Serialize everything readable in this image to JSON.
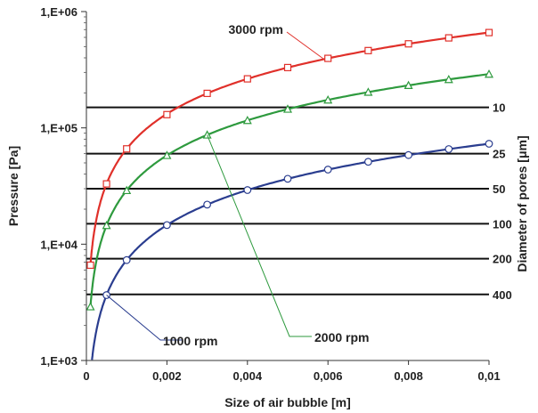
{
  "chart_data": {
    "type": "line",
    "xlabel": "Size of air bubble [m]",
    "ylabel": "Pressure [Pa]",
    "y2label": "Diameter of pores [μm]",
    "yscale": "log",
    "xlim": [
      0,
      0.01
    ],
    "ylim": [
      1000,
      1000000
    ],
    "x_ticks": [
      0,
      0.002,
      0.004,
      0.006,
      0.008,
      0.01
    ],
    "x_tick_labels": [
      "0",
      "0,002",
      "0,004",
      "0,006",
      "0,008",
      "0,01"
    ],
    "y_ticks": [
      1000,
      10000,
      100000,
      1000000
    ],
    "y_tick_labels": [
      "1,E+03",
      "1,E+04",
      "1,E+05",
      "1,E+06"
    ],
    "grid": false,
    "legend": "none",
    "series": [
      {
        "name": "3000 rpm",
        "color": "#e0302a",
        "marker": "square",
        "x": [
          0.0001,
          0.0005,
          0.001,
          0.002,
          0.003,
          0.004,
          0.005,
          0.006,
          0.007,
          0.008,
          0.009,
          0.01
        ],
        "y": [
          6600,
          33000,
          66000,
          130000,
          198000,
          264000,
          330000,
          396000,
          462000,
          528000,
          594000,
          660000
        ]
      },
      {
        "name": "2000 rpm",
        "color": "#2e9a3e",
        "marker": "triangle",
        "x": [
          0.0001,
          0.0005,
          0.001,
          0.002,
          0.003,
          0.004,
          0.005,
          0.006,
          0.007,
          0.008,
          0.009,
          0.01
        ],
        "y": [
          2900,
          14500,
          29000,
          58000,
          87000,
          116000,
          145000,
          174000,
          203000,
          232000,
          261000,
          290000
        ]
      },
      {
        "name": "1000 rpm",
        "color": "#2a3d8f",
        "marker": "circle",
        "x": [
          0.0001,
          0.0005,
          0.001,
          0.002,
          0.003,
          0.004,
          0.005,
          0.006,
          0.007,
          0.008,
          0.009,
          0.01
        ],
        "y": [
          730,
          3650,
          7300,
          14600,
          21900,
          29200,
          36500,
          43800,
          51100,
          58400,
          65700,
          73000
        ]
      }
    ],
    "pore_lines": [
      {
        "label": "10",
        "pressure": 150000
      },
      {
        "label": "25",
        "pressure": 60000
      },
      {
        "label": "50",
        "pressure": 30000
      },
      {
        "label": "100",
        "pressure": 15000
      },
      {
        "label": "200",
        "pressure": 7500
      },
      {
        "label": "400",
        "pressure": 3700
      }
    ]
  }
}
